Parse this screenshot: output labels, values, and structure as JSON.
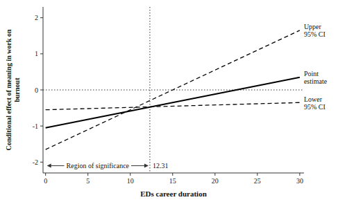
{
  "chart_data": {
    "type": "line",
    "x": [
      0,
      30
    ],
    "series": [
      {
        "name": "Point\nestimate",
        "color": "#000000",
        "line_style": "solid",
        "values": [
          -1.05,
          0.35
        ]
      },
      {
        "name": "Upper\n95% CI",
        "color": "#000000",
        "line_style": "dashed",
        "values": [
          -1.65,
          1.65
        ]
      },
      {
        "name": "Lower\n95% CI",
        "color": "#000000",
        "line_style": "dashed",
        "values": [
          -0.55,
          -0.35
        ]
      }
    ],
    "x_label": "EDs career duration",
    "y_label": "Conditional effect of meaning in work on\nburnout",
    "xlim": [
      -0.3,
      30.5
    ],
    "ylim": [
      -2.3,
      2.3
    ],
    "xticks": [
      0,
      5,
      10,
      15,
      20,
      25,
      30
    ],
    "yticks": [
      -2,
      -1,
      0,
      1,
      2
    ],
    "grid": false,
    "reference_lines": [
      {
        "axis": "y",
        "value": 0
      },
      {
        "axis": "x",
        "value": 12.31
      }
    ],
    "annotations": [
      {
        "text": "Region of significance",
        "x_range": [
          0,
          12.31
        ],
        "y": -2.1
      },
      {
        "text": "12.31",
        "x": 12.31,
        "y": -2.1
      }
    ]
  }
}
